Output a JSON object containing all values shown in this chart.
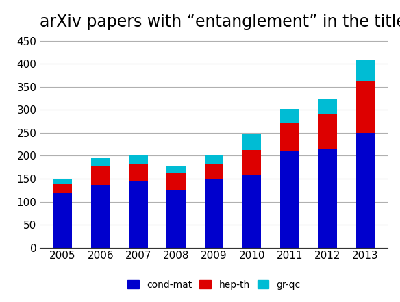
{
  "years": [
    2005,
    2006,
    2007,
    2008,
    2009,
    2010,
    2011,
    2012,
    2013
  ],
  "cond_mat": [
    118,
    137,
    145,
    125,
    148,
    158,
    210,
    215,
    250
  ],
  "hep_th": [
    22,
    40,
    38,
    38,
    33,
    55,
    62,
    75,
    113
  ],
  "gr_qc": [
    8,
    18,
    17,
    15,
    20,
    35,
    30,
    35,
    45
  ],
  "cond_mat_color": "#0000cd",
  "hep_th_color": "#dd0000",
  "gr_qc_color": "#00bcd4",
  "title": "arXiv papers with “entanglement” in the title",
  "xlabel": "",
  "ylabel": "",
  "ylim": [
    0,
    460
  ],
  "yticks": [
    0,
    50,
    100,
    150,
    200,
    250,
    300,
    350,
    400,
    450
  ],
  "legend_labels": [
    "cond-mat",
    "hep-th",
    "gr-qc"
  ],
  "background_color": "#ffffff",
  "grid_color": "#b0b0b0",
  "title_fontsize": 17,
  "tick_fontsize": 11,
  "legend_fontsize": 10,
  "bar_width": 0.5
}
